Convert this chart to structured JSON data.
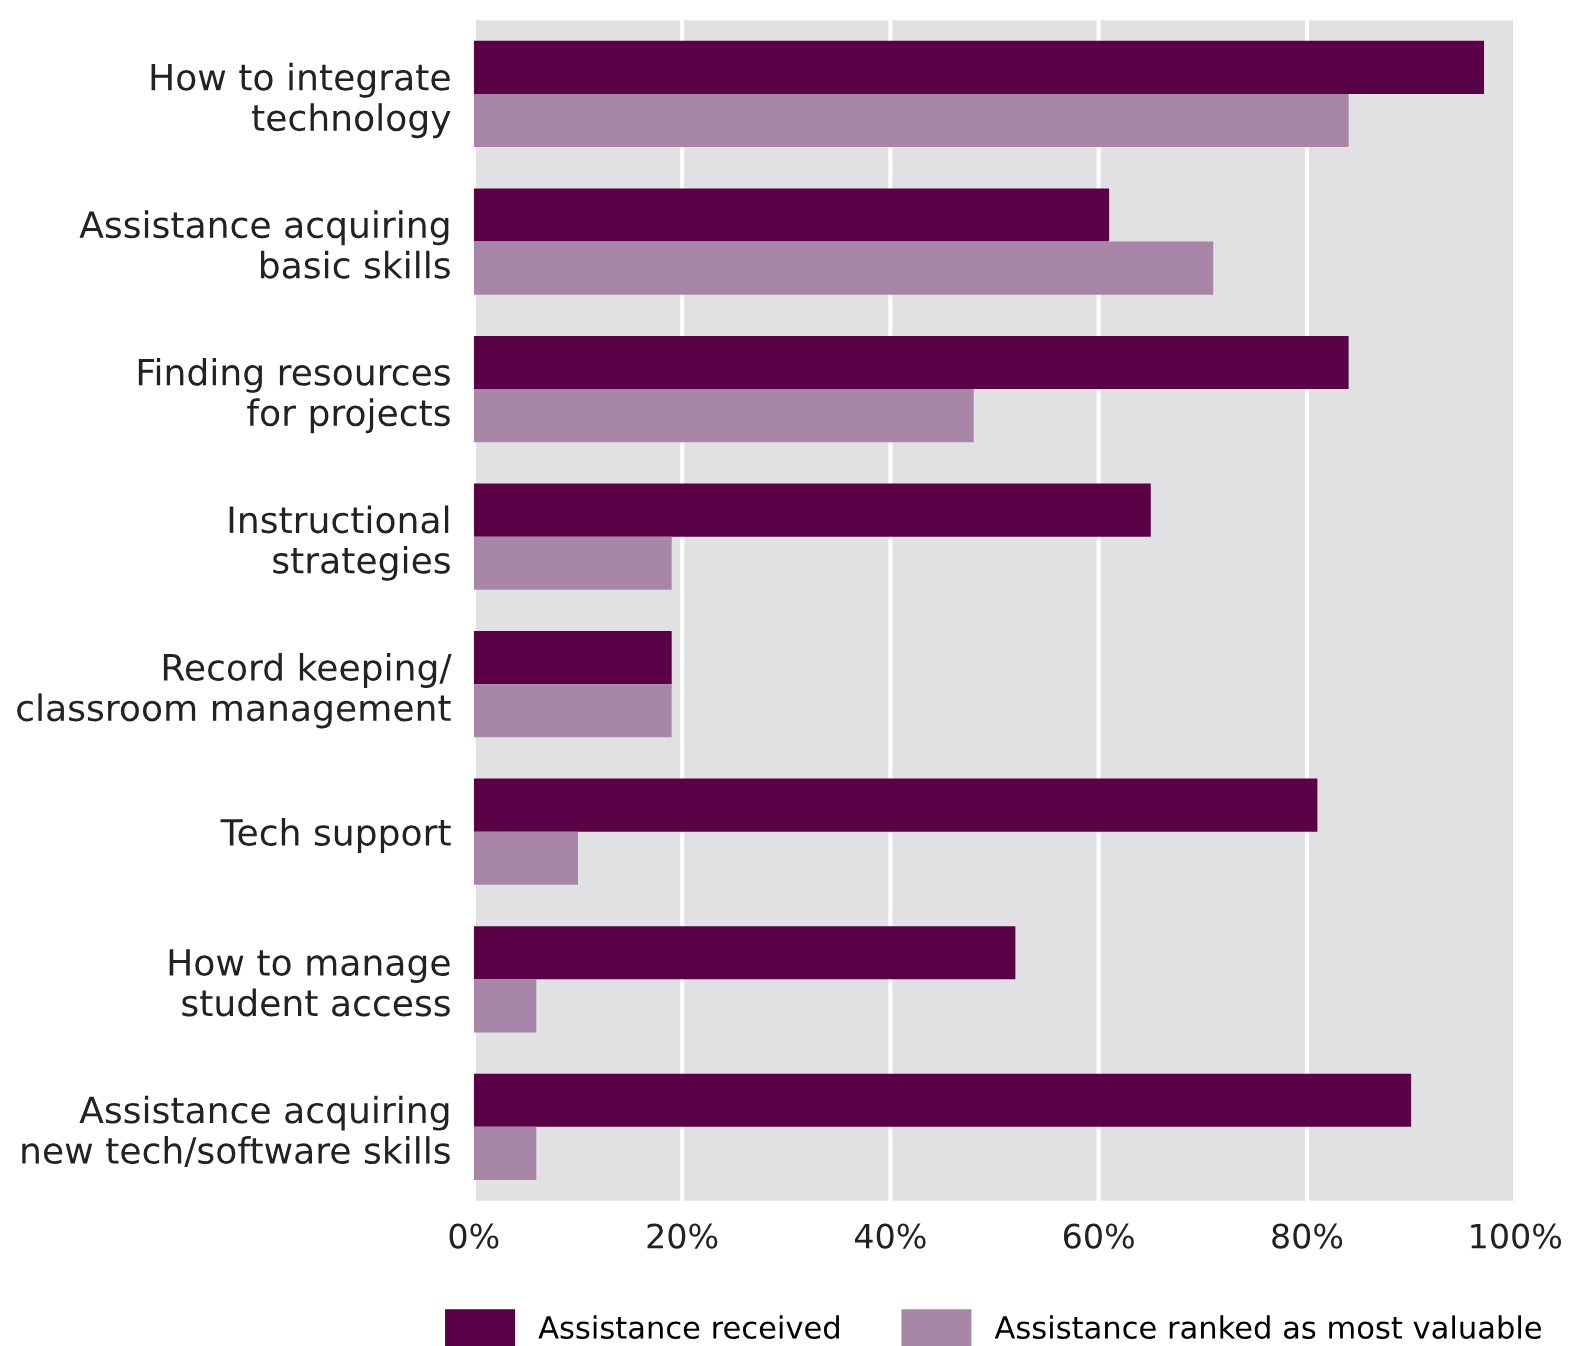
{
  "chart_data": {
    "type": "bar",
    "orientation": "horizontal",
    "categories": [
      "How to integrate\ntechnology",
      "Assistance acquiring\nbasic skills",
      "Finding resources\nfor projects",
      "Instructional\nstrategies",
      "Record keeping/\nclassroom management",
      "Tech support",
      "How to manage\nstudent access",
      "Assistance acquiring\nnew tech/software skills"
    ],
    "series": [
      {
        "name": "Assistance received",
        "color": "#5a0047",
        "values": [
          97,
          61,
          84,
          65,
          19,
          81,
          52,
          90
        ]
      },
      {
        "name": "Assistance ranked as most valuable",
        "color": "#a886a8",
        "values": [
          84,
          71,
          48,
          19,
          19,
          10,
          6,
          6
        ]
      }
    ],
    "xlim": [
      0,
      100
    ],
    "xticks": [
      {
        "value": 0,
        "label": "0%"
      },
      {
        "value": 20,
        "label": "20%"
      },
      {
        "value": 40,
        "label": "40%"
      },
      {
        "value": 60,
        "label": "60%"
      },
      {
        "value": 80,
        "label": "80%"
      },
      {
        "value": 100,
        "label": "100%"
      }
    ],
    "grid": "x",
    "legend": "bottom"
  }
}
